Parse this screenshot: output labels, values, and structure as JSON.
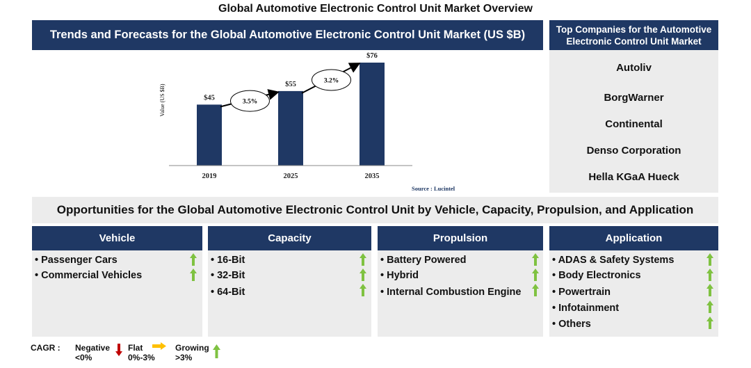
{
  "page_title": "Global Automotive Electronic Control Unit Market Overview",
  "chart_header": "Trends and Forecasts for the Global Automotive Electronic Control Unit Market (US $B)",
  "companies": {
    "header": "Top Companies for the Automotive Electronic Control Unit Market",
    "items": [
      "Autoliv",
      "BorgWarner",
      "Continental",
      "Denso Corporation",
      "Hella KGaA Hueck"
    ]
  },
  "opportunities_header": "Opportunities for the Global Automotive Electronic Control Unit by Vehicle, Capacity, Propulsion, and Application",
  "segments": [
    {
      "title": "Vehicle",
      "items": [
        {
          "label": "• Passenger Cars",
          "trend": "growing"
        },
        {
          "label": "• Commercial Vehicles",
          "trend": "growing"
        }
      ]
    },
    {
      "title": "Capacity",
      "items": [
        {
          "label": "• 16-Bit",
          "trend": "growing"
        },
        {
          "label": "• 32-Bit",
          "trend": "growing"
        },
        {
          "label": "• 64-Bit",
          "trend": "growing"
        }
      ]
    },
    {
      "title": "Propulsion",
      "items": [
        {
          "label": "• Battery Powered",
          "trend": "growing"
        },
        {
          "label": "• Hybrid",
          "trend": "growing"
        },
        {
          "label": "• Internal Combustion Engine",
          "trend": "growing"
        }
      ]
    },
    {
      "title": "Application",
      "items": [
        {
          "label": "• ADAS & Safety Systems",
          "trend": "growing"
        },
        {
          "label": "• Body Electronics",
          "trend": "growing"
        },
        {
          "label": "• Powertrain",
          "trend": "growing"
        },
        {
          "label": "• Infotainment",
          "trend": "growing"
        },
        {
          "label": "• Others",
          "trend": "growing"
        }
      ]
    }
  ],
  "legend": {
    "cagr_label": "CAGR :",
    "negative": [
      "Negative",
      "<0%"
    ],
    "flat": [
      "Flat",
      "0%-3%"
    ],
    "growing": [
      "Growing",
      ">3%"
    ]
  },
  "colors": {
    "navy": "#1f3864",
    "panel": "#ececec",
    "green": "#7fc241",
    "red": "#c00000",
    "yellow": "#ffc000"
  },
  "chart_data": {
    "type": "bar",
    "categories": [
      "2019",
      "2025",
      "2035"
    ],
    "values": [
      45,
      55,
      76
    ],
    "value_labels": [
      "$45",
      "$55",
      "$76"
    ],
    "ylabel": "Value (US $B)",
    "cagr_annotations": [
      {
        "from": "2019",
        "to": "2025",
        "label": "3.5%"
      },
      {
        "from": "2025",
        "to": "2035",
        "label": "3.2%"
      }
    ],
    "source": "Source : Lucintel",
    "ylim": [
      0,
      76
    ]
  }
}
